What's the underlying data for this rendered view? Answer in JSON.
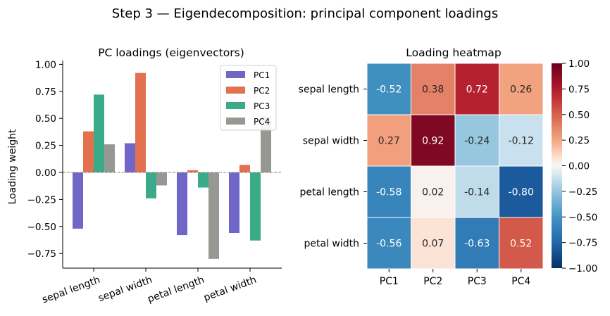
{
  "figure_title": "Step 3 — Eigendecomposition: principal component loadings",
  "colors": {
    "PC1": "#7066c7",
    "PC2": "#e2714f",
    "PC3": "#3aaa88",
    "PC4": "#989893",
    "zero_line": "#808080",
    "cell_border": "#ffffff",
    "colormap": "RdBu_r"
  },
  "chart_data": [
    {
      "type": "bar",
      "title": "PC loadings (eigenvectors)",
      "xlabel": "",
      "ylabel": "Loading weight",
      "categories": [
        "sepal length",
        "sepal width",
        "petal length",
        "petal width"
      ],
      "series": [
        {
          "name": "PC1",
          "values": [
            -0.52,
            0.27,
            -0.58,
            -0.56
          ]
        },
        {
          "name": "PC2",
          "values": [
            0.38,
            0.92,
            0.02,
            0.07
          ]
        },
        {
          "name": "PC3",
          "values": [
            0.72,
            -0.24,
            -0.14,
            -0.63
          ]
        },
        {
          "name": "PC4",
          "values": [
            0.26,
            -0.12,
            -0.8,
            0.52
          ]
        }
      ],
      "ylim": [
        -0.88,
        1.0
      ],
      "yticks": [
        "1.00",
        "0.75",
        "0.50",
        "0.25",
        "0.00",
        "−0.25",
        "−0.50",
        "−0.75"
      ],
      "legend": "top-right",
      "grid": false
    },
    {
      "type": "heatmap",
      "title": "Loading heatmap",
      "rows": [
        "sepal length",
        "sepal width",
        "petal length",
        "petal width"
      ],
      "columns": [
        "PC1",
        "PC2",
        "PC3",
        "PC4"
      ],
      "values": [
        [
          -0.52,
          0.38,
          0.72,
          0.26
        ],
        [
          0.27,
          0.92,
          -0.24,
          -0.12
        ],
        [
          -0.58,
          0.02,
          -0.14,
          -0.8
        ],
        [
          -0.56,
          0.07,
          -0.63,
          0.52
        ]
      ],
      "labels": [
        [
          "-0.52",
          "0.38",
          "0.72",
          "0.26"
        ],
        [
          "0.27",
          "0.92",
          "-0.24",
          "-0.12"
        ],
        [
          "-0.58",
          "0.02",
          "-0.14",
          "-0.80"
        ],
        [
          "-0.56",
          "0.07",
          "-0.63",
          "0.52"
        ]
      ],
      "vmin": -1.0,
      "vmax": 1.0,
      "colorbar_ticks": [
        "1.00",
        "0.75",
        "0.50",
        "0.25",
        "0.00",
        "−0.25",
        "−0.50",
        "−0.75",
        "−1.00"
      ]
    }
  ]
}
